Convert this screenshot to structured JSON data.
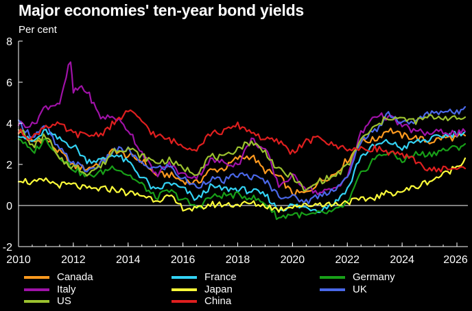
{
  "chart_data": {
    "type": "line",
    "title": "Major economies' ten-year bond yields",
    "ylabel": "Per cent",
    "xlabel": "",
    "ylim": [
      -2,
      8
    ],
    "xlim": [
      2010,
      2026.4
    ],
    "y_ticks": [
      "8",
      "6",
      "4",
      "2",
      "0",
      "-2"
    ],
    "x_ticks": [
      "2010",
      "2012",
      "2014",
      "2016",
      "2018",
      "2020",
      "2022",
      "2024",
      "2026"
    ],
    "legend_position": "bottom",
    "series": [
      {
        "name": "Canada",
        "color": "#ff9a1f",
        "x": [
          2010,
          2010.5,
          2011,
          2011.5,
          2012,
          2012.5,
          2013,
          2013.5,
          2014,
          2014.5,
          2015,
          2015.5,
          2016,
          2016.5,
          2017,
          2017.5,
          2018,
          2018.5,
          2019,
          2019.5,
          2020,
          2020.5,
          2021,
          2021.5,
          2022,
          2022.5,
          2023,
          2023.5,
          2024,
          2024.5,
          2025,
          2025.5,
          2026,
          2026.3
        ],
        "y": [
          3.6,
          3.1,
          3.2,
          2.6,
          1.9,
          1.8,
          2.1,
          2.7,
          2.4,
          2.2,
          1.5,
          1.5,
          1.2,
          1.1,
          1.7,
          1.8,
          2.3,
          2.4,
          1.7,
          1.4,
          0.6,
          0.6,
          1.2,
          1.5,
          2.2,
          3.1,
          3.2,
          3.7,
          3.4,
          3.3,
          3.1,
          3.3,
          3.3,
          3.4
        ]
      },
      {
        "name": "France",
        "color": "#33d3f5",
        "x": [
          2010,
          2010.5,
          2011,
          2011.5,
          2012,
          2012.5,
          2013,
          2013.5,
          2014,
          2014.5,
          2015,
          2015.5,
          2016,
          2016.5,
          2017,
          2017.5,
          2018,
          2018.5,
          2019,
          2019.5,
          2020,
          2020.5,
          2021,
          2021.5,
          2022,
          2022.5,
          2023,
          2023.5,
          2024,
          2024.5,
          2025,
          2025.5,
          2026,
          2026.3
        ],
        "y": [
          3.5,
          3.1,
          3.6,
          3.2,
          2.9,
          2.2,
          2.2,
          2.5,
          2.1,
          1.4,
          0.7,
          1.1,
          0.8,
          0.3,
          0.9,
          0.8,
          0.8,
          0.7,
          0.5,
          -0.2,
          0.0,
          -0.1,
          -0.2,
          0.1,
          0.8,
          2.4,
          2.9,
          3.1,
          2.8,
          3.1,
          3.2,
          3.4,
          3.5,
          3.6
        ]
      },
      {
        "name": "Germany",
        "color": "#18a018",
        "x": [
          2010,
          2010.5,
          2011,
          2011.5,
          2012,
          2012.5,
          2013,
          2013.5,
          2014,
          2014.5,
          2015,
          2015.5,
          2016,
          2016.5,
          2017,
          2017.5,
          2018,
          2018.5,
          2019,
          2019.5,
          2020,
          2020.5,
          2021,
          2021.5,
          2022,
          2022.5,
          2023,
          2023.5,
          2024,
          2024.5,
          2025,
          2025.5,
          2026,
          2026.3
        ],
        "y": [
          3.3,
          2.6,
          3.2,
          2.4,
          1.8,
          1.4,
          1.6,
          1.9,
          1.5,
          1.0,
          0.4,
          0.7,
          0.3,
          -0.1,
          0.4,
          0.5,
          0.5,
          0.4,
          0.1,
          -0.6,
          -0.4,
          -0.5,
          -0.4,
          -0.3,
          0.1,
          1.5,
          2.3,
          2.6,
          2.2,
          2.5,
          2.5,
          2.7,
          2.8,
          3.0
        ]
      },
      {
        "name": "Italy",
        "color": "#a012a8",
        "x": [
          2010,
          2010.5,
          2011,
          2011.5,
          2011.9,
          2012,
          2012.3,
          2012.5,
          2013,
          2013.5,
          2014,
          2014.5,
          2015,
          2015.5,
          2016,
          2016.5,
          2017,
          2017.5,
          2018,
          2018.5,
          2019,
          2019.5,
          2020,
          2020.5,
          2021,
          2021.5,
          2022,
          2022.5,
          2023,
          2023.5,
          2024,
          2024.5,
          2025,
          2025.5,
          2026,
          2026.3
        ],
        "y": [
          4.0,
          3.9,
          4.8,
          5.0,
          7.0,
          5.5,
          5.8,
          5.5,
          4.3,
          4.3,
          3.7,
          2.6,
          1.5,
          2.0,
          1.5,
          1.4,
          2.2,
          2.1,
          2.0,
          3.2,
          2.7,
          1.0,
          1.4,
          0.9,
          0.6,
          0.8,
          1.4,
          3.5,
          4.4,
          4.3,
          3.9,
          3.6,
          3.5,
          3.6,
          3.5,
          3.6
        ]
      },
      {
        "name": "Japan",
        "color": "#ffff3a",
        "x": [
          2010,
          2010.5,
          2011,
          2011.5,
          2012,
          2012.5,
          2013,
          2013.5,
          2014,
          2014.5,
          2015,
          2015.5,
          2016,
          2016.5,
          2017,
          2017.5,
          2018,
          2018.5,
          2019,
          2019.5,
          2020,
          2020.5,
          2021,
          2021.5,
          2022,
          2022.5,
          2023,
          2023.5,
          2024,
          2024.5,
          2025,
          2025.5,
          2026,
          2026.3
        ],
        "y": [
          1.3,
          1.1,
          1.2,
          1.0,
          1.0,
          0.8,
          0.8,
          0.8,
          0.6,
          0.5,
          0.3,
          0.4,
          -0.1,
          -0.2,
          0.05,
          0.05,
          0.05,
          0.1,
          0.0,
          -0.2,
          0.0,
          0.0,
          0.1,
          0.05,
          0.2,
          0.25,
          0.4,
          0.6,
          0.7,
          0.9,
          1.2,
          1.5,
          1.9,
          2.3
        ]
      },
      {
        "name": "UK",
        "color": "#4a68e8",
        "x": [
          2010,
          2010.5,
          2011,
          2011.5,
          2012,
          2012.5,
          2013,
          2013.5,
          2014,
          2014.5,
          2015,
          2015.5,
          2016,
          2016.5,
          2017,
          2017.5,
          2018,
          2018.5,
          2019,
          2019.5,
          2020,
          2020.5,
          2021,
          2021.5,
          2022,
          2022.5,
          2023,
          2023.5,
          2024,
          2024.5,
          2025,
          2025.5,
          2026,
          2026.3
        ],
        "y": [
          4.0,
          3.4,
          3.8,
          2.7,
          2.1,
          1.7,
          2.0,
          2.7,
          2.7,
          2.0,
          1.8,
          1.9,
          1.3,
          0.9,
          1.3,
          1.2,
          1.5,
          1.4,
          1.2,
          0.5,
          0.4,
          0.2,
          0.5,
          0.8,
          1.3,
          3.2,
          3.6,
          4.5,
          4.0,
          4.1,
          4.5,
          4.6,
          4.5,
          4.8
        ]
      },
      {
        "name": "US",
        "color": "#9cc22f",
        "x": [
          2010,
          2010.5,
          2011,
          2011.5,
          2012,
          2012.5,
          2013,
          2013.5,
          2014,
          2014.5,
          2015,
          2015.5,
          2016,
          2016.5,
          2017,
          2017.5,
          2018,
          2018.5,
          2019,
          2019.5,
          2020,
          2020.5,
          2021,
          2021.5,
          2022,
          2022.5,
          2023,
          2023.5,
          2024,
          2024.5,
          2025,
          2025.5,
          2026,
          2026.3
        ],
        "y": [
          3.8,
          2.9,
          3.4,
          2.2,
          1.9,
          1.6,
          1.9,
          2.7,
          2.8,
          2.4,
          2.1,
          2.2,
          1.8,
          1.6,
          2.4,
          2.3,
          2.8,
          3.1,
          2.6,
          1.7,
          1.4,
          0.7,
          1.2,
          1.4,
          1.9,
          3.2,
          3.8,
          4.3,
          4.2,
          4.1,
          4.3,
          4.3,
          4.2,
          4.3
        ]
      },
      {
        "name": "China",
        "color": "#e01f1f",
        "x": [
          2010,
          2010.5,
          2011,
          2011.5,
          2012,
          2012.5,
          2013,
          2013.5,
          2014,
          2014.5,
          2015,
          2015.5,
          2016,
          2016.5,
          2017,
          2017.5,
          2018,
          2018.5,
          2019,
          2019.5,
          2020,
          2020.5,
          2021,
          2021.5,
          2022,
          2022.5,
          2023,
          2023.5,
          2024,
          2024.5,
          2025,
          2025.5,
          2026,
          2026.3
        ],
        "y": [
          3.6,
          3.3,
          3.9,
          3.9,
          3.5,
          3.4,
          3.5,
          4.0,
          4.6,
          4.1,
          3.4,
          3.2,
          2.9,
          2.8,
          3.5,
          3.6,
          3.9,
          3.6,
          3.2,
          3.1,
          2.6,
          3.1,
          3.3,
          2.9,
          2.8,
          2.7,
          2.8,
          2.6,
          2.4,
          2.2,
          1.7,
          1.8,
          1.8,
          1.8
        ]
      }
    ]
  }
}
